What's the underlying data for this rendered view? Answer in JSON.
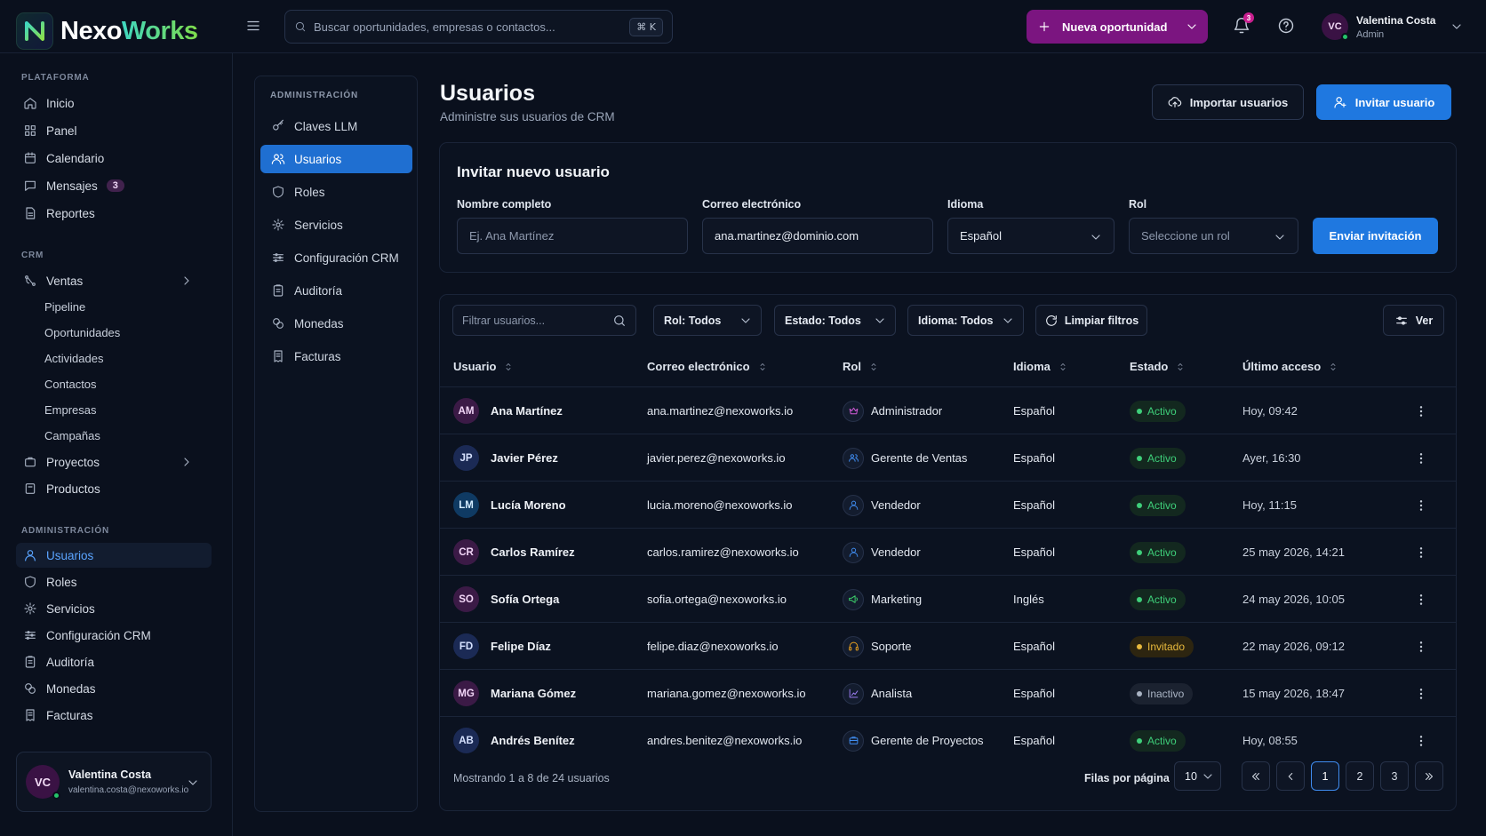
{
  "brand": {
    "name_a": "Nexo",
    "name_b": "Works"
  },
  "topbar": {
    "search_placeholder": "Buscar oportunidades, empresas o contactos...",
    "shortcut": "⌘ K",
    "new_opportunity": "Nueva oportunidad",
    "notifications_count": "3",
    "user_initials": "VC",
    "user_name": "Valentina Costa",
    "user_role": "Admin"
  },
  "sidebar": {
    "platform_title": "PLATAFORMA",
    "platform_items": [
      {
        "label": "Inicio",
        "icon": "home-icon"
      },
      {
        "label": "Panel",
        "icon": "grid-icon"
      },
      {
        "label": "Calendario",
        "icon": "calendar-icon"
      },
      {
        "label": "Mensajes",
        "icon": "message-icon",
        "badge": "3"
      },
      {
        "label": "Reportes",
        "icon": "report-icon"
      }
    ],
    "crm_title": "CRM",
    "ventas": "Ventas",
    "ventas_sub": [
      "Pipeline",
      "Oportunidades",
      "Actividades",
      "Contactos",
      "Empresas",
      "Campañas"
    ],
    "proyectos": "Proyectos",
    "productos": "Productos",
    "admin_title": "ADMINISTRACIÓN",
    "admin_items": [
      "Usuarios",
      "Roles",
      "Servicios",
      "Configuración CRM",
      "Auditoría",
      "Monedas",
      "Facturas"
    ],
    "user_initials": "VC",
    "user_name": "Valentina Costa",
    "user_email": "valentina.costa@nexoworks.io"
  },
  "admin_panel": {
    "title": "ADMINISTRACIÓN",
    "items": [
      "Claves LLM",
      "Usuarios",
      "Roles",
      "Servicios",
      "Configuración CRM",
      "Auditoría",
      "Monedas",
      "Facturas"
    ]
  },
  "page": {
    "title": "Usuarios",
    "subtitle": "Administre sus usuarios de CRM",
    "import_button": "Importar usuarios",
    "invite_button": "Invitar usuario"
  },
  "invite_form": {
    "title": "Invitar nuevo usuario",
    "name_label": "Nombre completo",
    "name_placeholder": "Ej. Ana Martínez",
    "email_label": "Correo electrónico",
    "email_value": "ana.martinez@dominio.com",
    "language_label": "Idioma",
    "language_value": "Español",
    "role_label": "Rol",
    "role_placeholder": "Seleccione un rol",
    "submit": "Enviar invitación"
  },
  "filters": {
    "search_placeholder": "Filtrar usuarios...",
    "role": "Rol: Todos",
    "status": "Estado: Todos",
    "language": "Idioma: Todos",
    "clear": "Limpiar filtros",
    "view": "Ver"
  },
  "table": {
    "headers": [
      "Usuario",
      "Correo electrónico",
      "Rol",
      "Idioma",
      "Estado",
      "Último acceso"
    ],
    "rows": [
      {
        "initials": "AM",
        "name": "Ana Martínez",
        "email": "ana.martinez@nexoworks.io",
        "role": "Administrador",
        "role_icon": "crown-icon",
        "language": "Español",
        "status": "Activo",
        "last_access": "Hoy, 09:42",
        "avatar_bg": "#3b1a46",
        "avatar_fg": "#f2d6f7",
        "role_color": "#d25bd8"
      },
      {
        "initials": "JP",
        "name": "Javier Pérez",
        "email": "javier.perez@nexoworks.io",
        "role": "Gerente de Ventas",
        "role_icon": "users-icon",
        "language": "Español",
        "status": "Activo",
        "last_access": "Ayer, 16:30",
        "avatar_bg": "#1b2a55",
        "avatar_fg": "#d7e2ff",
        "role_color": "#3f8cf0"
      },
      {
        "initials": "LM",
        "name": "Lucía Moreno",
        "email": "lucia.moreno@nexoworks.io",
        "role": "Vendedor",
        "role_icon": "user-icon",
        "language": "Español",
        "status": "Activo",
        "last_access": "Hoy, 11:15",
        "avatar_bg": "#0f3a63",
        "avatar_fg": "#d5ecff",
        "role_color": "#3f8cf0"
      },
      {
        "initials": "CR",
        "name": "Carlos Ramírez",
        "email": "carlos.ramirez@nexoworks.io",
        "role": "Vendedor",
        "role_icon": "user-icon",
        "language": "Español",
        "status": "Activo",
        "last_access": "25 may 2026, 14:21",
        "avatar_bg": "#3b1a46",
        "avatar_fg": "#f2d6f7",
        "role_color": "#3f8cf0"
      },
      {
        "initials": "SO",
        "name": "Sofía Ortega",
        "email": "sofia.ortega@nexoworks.io",
        "role": "Marketing",
        "role_icon": "megaphone-icon",
        "language": "Inglés",
        "status": "Activo",
        "last_access": "24 may 2026, 10:05",
        "avatar_bg": "#3b1a46",
        "avatar_fg": "#f2d6f7",
        "role_color": "#3ccf6a"
      },
      {
        "initials": "FD",
        "name": "Felipe Díaz",
        "email": "felipe.diaz@nexoworks.io",
        "role": "Soporte",
        "role_icon": "headset-icon",
        "language": "Español",
        "status": "Invitado",
        "last_access": "22 may 2026, 09:12",
        "avatar_bg": "#1b2a55",
        "avatar_fg": "#d7e2ff",
        "role_color": "#e8a020"
      },
      {
        "initials": "MG",
        "name": "Mariana Gómez",
        "email": "mariana.gomez@nexoworks.io",
        "role": "Analista",
        "role_icon": "chart-icon",
        "language": "Español",
        "status": "Inactivo",
        "last_access": "15 may 2026, 18:47",
        "avatar_bg": "#3b1a46",
        "avatar_fg": "#f2d6f7",
        "role_color": "#9b7cf0"
      },
      {
        "initials": "AB",
        "name": "Andrés Benítez",
        "email": "andres.benitez@nexoworks.io",
        "role": "Gerente de Proyectos",
        "role_icon": "briefcase-icon",
        "language": "Español",
        "status": "Activo",
        "last_access": "Hoy, 08:55",
        "avatar_bg": "#1b2a55",
        "avatar_fg": "#d7e2ff",
        "role_color": "#3f8cf0"
      }
    ]
  },
  "status_styles": {
    "Activo": {
      "bg": "#13281f",
      "fg": "#3ecf7a",
      "dot": "#3ecf7a"
    },
    "Invitado": {
      "bg": "#2d2510",
      "fg": "#e8b93c",
      "dot": "#e8b93c"
    },
    "Inactivo": {
      "bg": "#1b2230",
      "fg": "#aab4c4",
      "dot": "#aab4c4"
    }
  },
  "pagination": {
    "summary": "Mostrando 1 a 8 de 24 usuarios",
    "rows_per_page_label": "Filas por página",
    "rows_per_page": "10",
    "pages": [
      "1",
      "2",
      "3"
    ],
    "current": "1"
  },
  "colors": {
    "accent": "#1f78e0",
    "brand_purple": "#7b1580"
  }
}
